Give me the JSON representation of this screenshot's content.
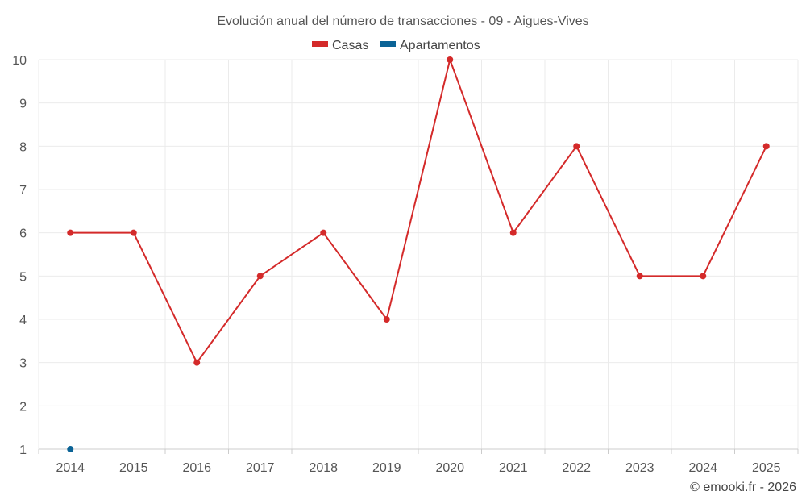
{
  "chart_data": {
    "type": "line",
    "title": "Evolución anual del número de transacciones - 09 - Aigues-Vives",
    "categories": [
      "2014",
      "2015",
      "2016",
      "2017",
      "2018",
      "2019",
      "2020",
      "2021",
      "2022",
      "2023",
      "2024",
      "2025"
    ],
    "series": [
      {
        "name": "Casas",
        "color": "#d42a2a",
        "values": [
          6,
          6,
          3,
          5,
          6,
          4,
          10,
          6,
          8,
          5,
          5,
          8
        ]
      },
      {
        "name": "Apartamentos",
        "color": "#0b6396",
        "values": [
          1,
          null,
          null,
          null,
          null,
          null,
          null,
          null,
          null,
          null,
          null,
          null
        ]
      }
    ],
    "yticks": [
      1,
      2,
      3,
      4,
      5,
      6,
      7,
      8,
      9,
      10
    ],
    "ylim": [
      1,
      10
    ],
    "grid": true,
    "legend_position": "top-center",
    "xlabel": "",
    "ylabel": ""
  },
  "credit": "© emooki.fr - 2026"
}
